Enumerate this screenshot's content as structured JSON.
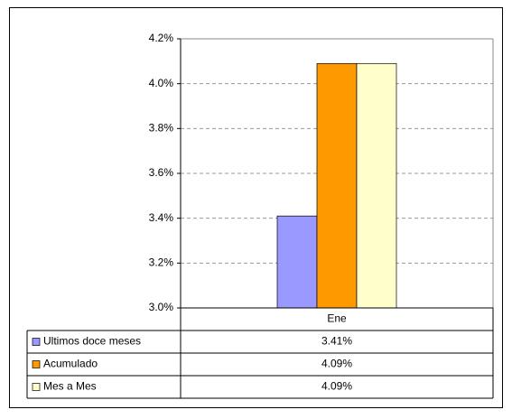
{
  "chart_data": {
    "type": "bar",
    "categories": [
      "Ene"
    ],
    "series": [
      {
        "name": "Ultimos doce meses",
        "color": "#9999ff",
        "values": [
          3.41
        ],
        "value_labels": [
          "3.41%"
        ]
      },
      {
        "name": "Acumulado",
        "color": "#ff9900",
        "values": [
          4.09
        ],
        "value_labels": [
          "4.09%"
        ]
      },
      {
        "name": "Mes a Mes",
        "color": "#ffffcc",
        "values": [
          4.09
        ],
        "value_labels": [
          "4.09%"
        ]
      }
    ],
    "ylim": [
      3.0,
      4.2
    ],
    "yticks": [
      {
        "value": 3.0,
        "label": "3.0%"
      },
      {
        "value": 3.2,
        "label": "3.2%"
      },
      {
        "value": 3.4,
        "label": "3.4%"
      },
      {
        "value": 3.6,
        "label": "3.6%"
      },
      {
        "value": 3.8,
        "label": "3.8%"
      },
      {
        "value": 4.0,
        "label": "4.0%"
      },
      {
        "value": 4.2,
        "label": "4.2%"
      }
    ],
    "grid": true
  }
}
